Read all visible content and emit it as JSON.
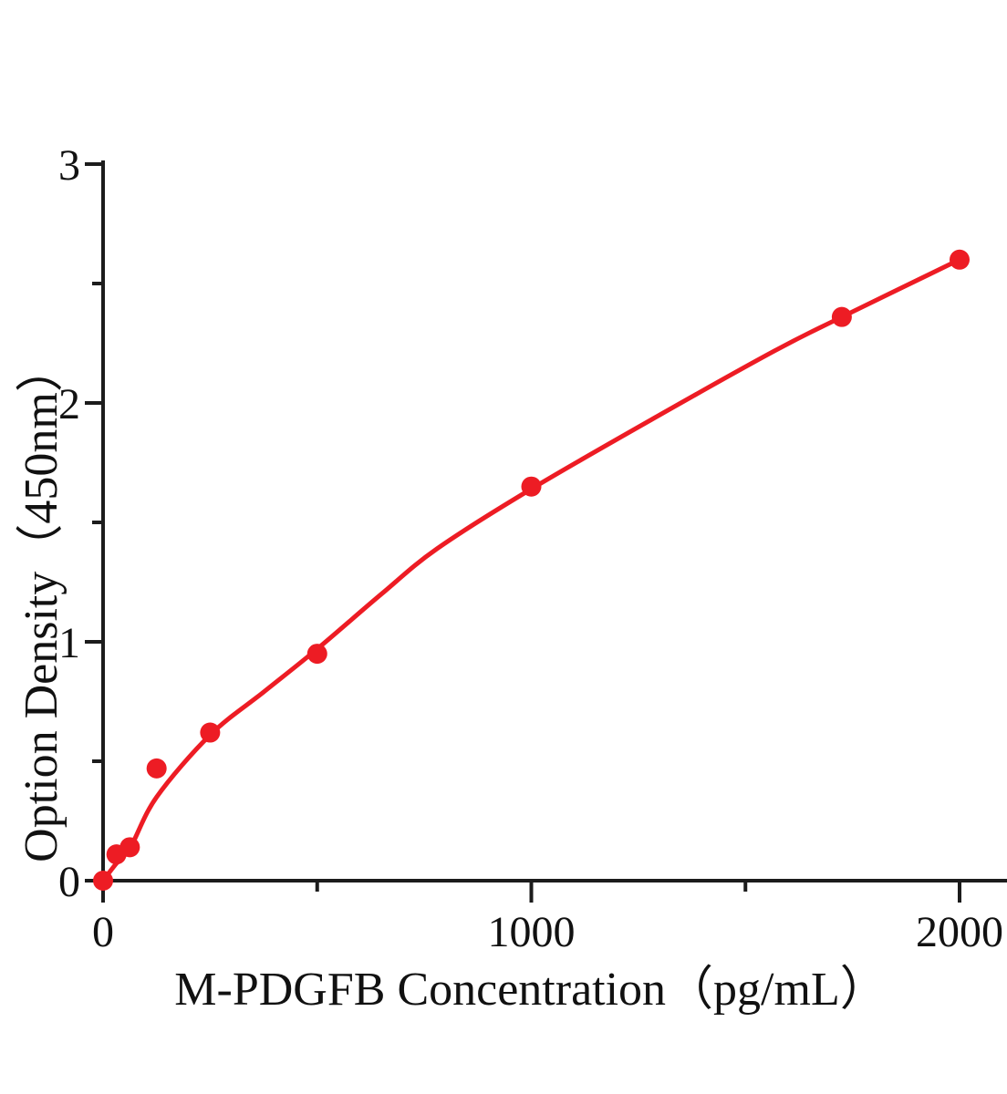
{
  "figure": {
    "background": "#ffffff",
    "axis_color": "#1c1c1c",
    "accent_red": "#ed1c24"
  },
  "chart_data": {
    "type": "scatter",
    "title": "",
    "xlabel": "M-PDGFB Concentration（pg/mL）",
    "ylabel": "Option Density（450nm）",
    "xlim": [
      0,
      2110
    ],
    "ylim": [
      0,
      3
    ],
    "grid": false,
    "legend": null,
    "x_major_ticks": [
      {
        "value": 0,
        "label": "0"
      },
      {
        "value": 1000,
        "label": "1000"
      },
      {
        "value": 2000,
        "label": "2000"
      }
    ],
    "x_minor_ticks": [
      500,
      1500
    ],
    "y_major_ticks": [
      {
        "value": 0,
        "label": "0"
      },
      {
        "value": 1,
        "label": "1"
      },
      {
        "value": 2,
        "label": "2"
      },
      {
        "value": 3,
        "label": "3"
      }
    ],
    "y_minor_ticks": [
      0.5,
      1.5,
      2.5
    ],
    "series": [
      {
        "name": "fitted-curve",
        "type": "line",
        "color": "#ed1c24",
        "stroke_width": 5,
        "points": [
          [
            0,
            0.0
          ],
          [
            30,
            0.07
          ],
          [
            64,
            0.14
          ],
          [
            125,
            0.35
          ],
          [
            250,
            0.61
          ],
          [
            375,
            0.79
          ],
          [
            500,
            0.97
          ],
          [
            650,
            1.2
          ],
          [
            780,
            1.39
          ],
          [
            1000,
            1.64
          ],
          [
            1300,
            1.95
          ],
          [
            1570,
            2.22
          ],
          [
            1725,
            2.36
          ],
          [
            2000,
            2.6
          ]
        ]
      },
      {
        "name": "standard-points",
        "type": "scatter",
        "color": "#ed1c24",
        "marker_radius": 11,
        "points": [
          [
            0,
            0.0
          ],
          [
            31.25,
            0.11
          ],
          [
            62.5,
            0.14
          ],
          [
            125,
            0.47
          ],
          [
            250,
            0.62
          ],
          [
            500,
            0.95
          ],
          [
            1000,
            1.65
          ],
          [
            1725,
            2.36
          ],
          [
            2000,
            2.6
          ]
        ]
      }
    ]
  }
}
